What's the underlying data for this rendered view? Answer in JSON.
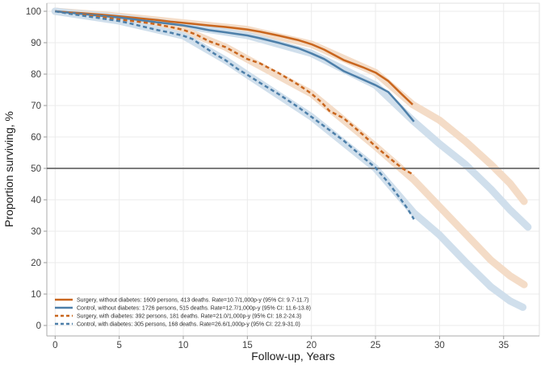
{
  "chart_data": {
    "type": "line",
    "title": "",
    "xlabel": "Follow-up, Years",
    "ylabel": "Proportion surviving, %",
    "xlim": [
      0,
      37.8
    ],
    "ylim": [
      0,
      102.5
    ],
    "xticks": [
      0,
      5,
      10,
      15,
      20,
      25,
      30,
      35
    ],
    "yticks": [
      0,
      10,
      20,
      30,
      40,
      50,
      60,
      70,
      80,
      90,
      100
    ],
    "grid": true,
    "legend_position": "bottom-left",
    "reference_line_y": 50,
    "colors": {
      "surgery": "#c9661e",
      "control": "#4d7fa9",
      "surgery_band": "#f4dcc7",
      "control_band": "#d0dfec",
      "reference": "#6a6a6a"
    },
    "series": [
      {
        "name": "surgery-without-diabetes",
        "label": "Surgery, without diabetes: 1609 persons, 413 deaths. Rate=10.7/1,000p-y (95% CI: 9.7-11.7)",
        "color_key": "surgery",
        "dashed": false,
        "points": [
          [
            0,
            100
          ],
          [
            1,
            99.7
          ],
          [
            2,
            99.4
          ],
          [
            3,
            99.1
          ],
          [
            4,
            98.8
          ],
          [
            5,
            98.4
          ],
          [
            6,
            98
          ],
          [
            7,
            97.6
          ],
          [
            8,
            97.2
          ],
          [
            9,
            96.7
          ],
          [
            10,
            96.3
          ],
          [
            11,
            95.9
          ],
          [
            12,
            95.5
          ],
          [
            13.3,
            95
          ],
          [
            15,
            94.2
          ],
          [
            16,
            93.5
          ],
          [
            17.5,
            92.2
          ],
          [
            19,
            90.8
          ],
          [
            20,
            89.5
          ],
          [
            21,
            87.8
          ],
          [
            22.5,
            84.5
          ],
          [
            24,
            82.2
          ],
          [
            25,
            80.5
          ],
          [
            26,
            77.8
          ],
          [
            27,
            73.8
          ],
          [
            27.9,
            70.3
          ]
        ]
      },
      {
        "name": "control-without-diabetes",
        "label": "Control, without diabetes: 1726 persons, 515 deaths. Rate=12.7/1,000p-y (95% CI: 11.6-13.8)",
        "color_key": "control",
        "dashed": false,
        "points": [
          [
            0,
            100
          ],
          [
            1,
            99.6
          ],
          [
            2,
            99.2
          ],
          [
            3,
            98.8
          ],
          [
            4,
            98.4
          ],
          [
            5,
            98
          ],
          [
            6,
            97.5
          ],
          [
            7,
            97
          ],
          [
            8,
            96.5
          ],
          [
            9,
            96
          ],
          [
            10,
            95.5
          ],
          [
            11,
            94.8
          ],
          [
            12,
            94
          ],
          [
            13.3,
            93.3
          ],
          [
            15,
            92.3
          ],
          [
            16,
            91.4
          ],
          [
            17.5,
            89.9
          ],
          [
            19,
            88.2
          ],
          [
            20,
            86.6
          ],
          [
            21,
            84.8
          ],
          [
            22.5,
            81
          ],
          [
            24,
            78.3
          ],
          [
            25,
            76.5
          ],
          [
            26,
            74.3
          ],
          [
            27,
            69.8
          ],
          [
            28,
            64.9
          ]
        ]
      },
      {
        "name": "surgery-with-diabetes",
        "label": "Surgery, with diabetes: 392 persons, 181 deaths. Rate=21.0/1,000p-y (95% CI: 18.2-24.3)",
        "color_key": "surgery",
        "dashed": true,
        "points": [
          [
            0,
            100
          ],
          [
            1,
            99.5
          ],
          [
            2,
            99
          ],
          [
            3,
            98.5
          ],
          [
            4,
            98
          ],
          [
            5,
            97.4
          ],
          [
            6,
            96.9
          ],
          [
            7,
            96.4
          ],
          [
            8,
            95.8
          ],
          [
            9,
            95
          ],
          [
            10,
            94.1
          ],
          [
            11,
            92.6
          ],
          [
            12,
            90.5
          ],
          [
            13.3,
            88.6
          ],
          [
            14,
            87
          ],
          [
            15,
            84.8
          ],
          [
            16,
            83.4
          ],
          [
            17.5,
            80.2
          ],
          [
            19,
            76.6
          ],
          [
            20,
            73.8
          ],
          [
            20.8,
            71
          ],
          [
            21.4,
            68.3
          ],
          [
            22.5,
            66
          ],
          [
            24,
            60.8
          ],
          [
            25,
            57
          ],
          [
            26,
            53.6
          ],
          [
            27.1,
            50
          ],
          [
            28,
            47.9
          ]
        ]
      },
      {
        "name": "control-with-diabetes",
        "label": "Control, with diabetes: 305 persons, 168 deaths. Rate=26.6/1,000p-y (95% CI: 22.9-31.0)",
        "color_key": "control",
        "dashed": true,
        "points": [
          [
            0,
            100
          ],
          [
            1,
            99.3
          ],
          [
            2,
            98.7
          ],
          [
            3,
            98.1
          ],
          [
            4,
            97.5
          ],
          [
            5,
            96.9
          ],
          [
            6,
            96
          ],
          [
            7,
            95
          ],
          [
            8,
            94
          ],
          [
            9,
            93.2
          ],
          [
            10,
            92.2
          ],
          [
            10.7,
            91.2
          ],
          [
            11.5,
            89
          ],
          [
            12.5,
            86.3
          ],
          [
            13.3,
            84.4
          ],
          [
            14.3,
            81.5
          ],
          [
            15,
            79.8
          ],
          [
            16,
            77.2
          ],
          [
            17.5,
            73.5
          ],
          [
            19,
            69.4
          ],
          [
            20,
            66.4
          ],
          [
            21,
            63.4
          ],
          [
            22.5,
            58.9
          ],
          [
            24,
            53.6
          ],
          [
            25,
            50.2
          ],
          [
            26,
            45.5
          ],
          [
            27,
            40
          ],
          [
            27.5,
            37.2
          ],
          [
            28,
            33.8
          ]
        ]
      }
    ],
    "bands": [
      {
        "name": "surgery-without-diabetes",
        "color_key": "surgery_band",
        "points": [
          [
            0,
            100
          ],
          [
            5,
            98.4
          ],
          [
            10,
            96.3
          ],
          [
            15,
            94.2
          ],
          [
            20,
            89.5
          ],
          [
            25,
            80.5
          ],
          [
            27.9,
            70.3
          ],
          [
            30,
            65.3
          ],
          [
            32,
            58.7
          ],
          [
            34,
            51.3
          ],
          [
            35.5,
            45.2
          ],
          [
            36.6,
            39.5
          ]
        ]
      },
      {
        "name": "control-without-diabetes",
        "color_key": "control_band",
        "points": [
          [
            0,
            100
          ],
          [
            5,
            98
          ],
          [
            10,
            95.5
          ],
          [
            15,
            92.3
          ],
          [
            20,
            86.6
          ],
          [
            25,
            76.5
          ],
          [
            28,
            64.9
          ],
          [
            30,
            57.8
          ],
          [
            32,
            51.3
          ],
          [
            34,
            43.4
          ],
          [
            35.5,
            36.8
          ],
          [
            36.9,
            31.3
          ]
        ]
      },
      {
        "name": "surgery-with-diabetes",
        "color_key": "surgery_band",
        "points": [
          [
            0,
            100
          ],
          [
            5,
            97.4
          ],
          [
            10,
            94.1
          ],
          [
            13.3,
            88.6
          ],
          [
            15,
            84.8
          ],
          [
            20,
            73.8
          ],
          [
            25,
            57
          ],
          [
            28,
            46.3
          ],
          [
            30,
            37.8
          ],
          [
            32,
            29.3
          ],
          [
            34,
            20.8
          ],
          [
            35.5,
            15.8
          ],
          [
            36.6,
            13
          ]
        ]
      },
      {
        "name": "control-with-diabetes",
        "color_key": "control_band",
        "points": [
          [
            0,
            100
          ],
          [
            5,
            96.9
          ],
          [
            10,
            92.2
          ],
          [
            13.3,
            84.4
          ],
          [
            15,
            79.8
          ],
          [
            20,
            66.4
          ],
          [
            25,
            50
          ],
          [
            28,
            35.8
          ],
          [
            30,
            28.8
          ],
          [
            32,
            20.3
          ],
          [
            34,
            12.3
          ],
          [
            35.5,
            7.8
          ],
          [
            36.5,
            5.8
          ]
        ]
      }
    ]
  }
}
